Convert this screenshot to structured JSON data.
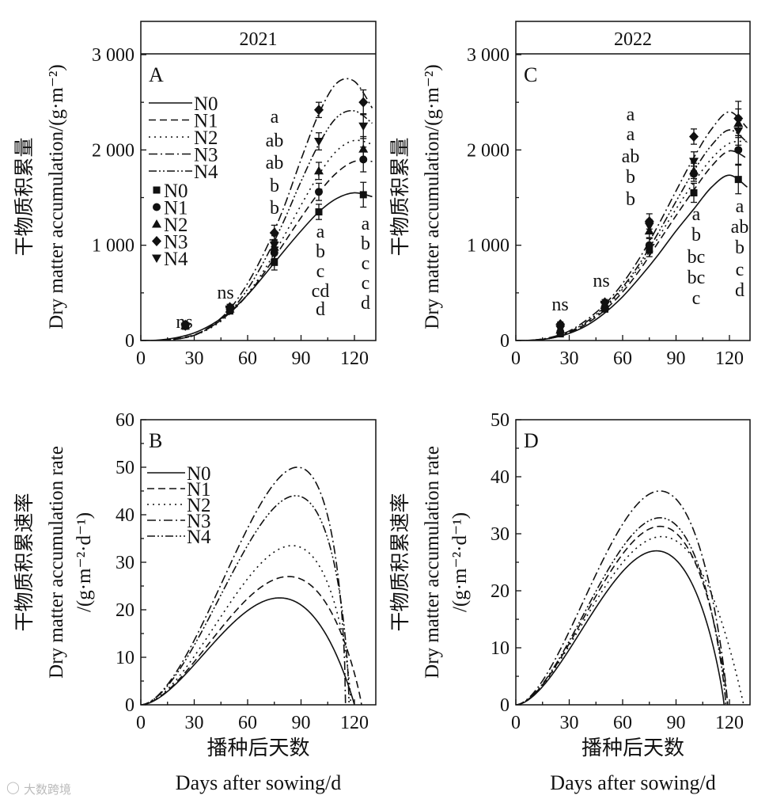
{
  "watermark": "大数跨境",
  "colors": {
    "ink": "#111111",
    "background": "#ffffff"
  },
  "chart_data": [
    {
      "panel": "A",
      "type": "line",
      "year_header": "2021",
      "ylabel_cn": "干物质积累量",
      "ylabel_en": "Dry matter accumulation/(g·m⁻²)",
      "xlabel_cn": "",
      "xlabel_en": "",
      "xlim": [
        0,
        132
      ],
      "ylim": [
        0,
        3000
      ],
      "xticks": [
        "0",
        "30",
        "60",
        "90",
        "120"
      ],
      "xtick_values": [
        0,
        30,
        60,
        90,
        120
      ],
      "yticks": [
        "0",
        "1 000",
        "2 000",
        "3 000"
      ],
      "ytick_values": [
        0,
        1000,
        2000,
        3000
      ],
      "legend_lines": [
        "N0",
        "N1",
        "N2",
        "N3",
        "N4"
      ],
      "legend_markers": [
        "N0",
        "N1",
        "N2",
        "N3",
        "N4"
      ],
      "curve_x": [
        0,
        10,
        20,
        30,
        40,
        50,
        60,
        70,
        80,
        90,
        100,
        110,
        120,
        130
      ],
      "curves": [
        {
          "name": "N0",
          "values": [
            0,
            5,
            30,
            80,
            170,
            300,
            480,
            700,
            930,
            1150,
            1350,
            1490,
            1550,
            1510
          ]
        },
        {
          "name": "N1",
          "values": [
            0,
            3,
            20,
            60,
            150,
            290,
            480,
            730,
            1010,
            1290,
            1550,
            1760,
            1880,
            1880
          ]
        },
        {
          "name": "N2",
          "values": [
            0,
            2,
            15,
            55,
            140,
            280,
            490,
            760,
            1080,
            1420,
            1740,
            1990,
            2100,
            2060
          ]
        },
        {
          "name": "N3",
          "values": [
            0,
            2,
            15,
            55,
            160,
            330,
            600,
            950,
            1380,
            1900,
            2380,
            2700,
            2720,
            2440
          ]
        },
        {
          "name": "N4",
          "values": [
            0,
            2,
            15,
            55,
            150,
            300,
            540,
            860,
            1240,
            1670,
            2060,
            2340,
            2410,
            2280
          ]
        }
      ],
      "points_x": [
        25,
        50,
        75,
        100,
        125
      ],
      "points": [
        {
          "name": "N0",
          "values": [
            150,
            310,
            820,
            1350,
            1530
          ],
          "err": [
            30,
            30,
            80,
            80,
            130
          ]
        },
        {
          "name": "N1",
          "values": [
            150,
            330,
            920,
            1560,
            1900
          ],
          "err": [
            30,
            30,
            60,
            90,
            130
          ]
        },
        {
          "name": "N2",
          "values": [
            155,
            330,
            980,
            1780,
            2010
          ],
          "err": [
            30,
            30,
            60,
            90,
            130
          ]
        },
        {
          "name": "N3",
          "values": [
            165,
            350,
            1130,
            2420,
            2500
          ],
          "err": [
            30,
            30,
            80,
            80,
            130
          ]
        },
        {
          "name": "N4",
          "values": [
            150,
            330,
            1000,
            2090,
            2250
          ],
          "err": [
            30,
            30,
            60,
            90,
            130
          ]
        }
      ],
      "annotations": [
        {
          "day": 25,
          "letters": [
            "ns"
          ]
        },
        {
          "day": 50,
          "letters": [
            "ns"
          ]
        },
        {
          "day": 75,
          "letters": [
            "a",
            "ab",
            "ab",
            "b",
            "b"
          ]
        },
        {
          "day": 100,
          "letters": [
            "a",
            "b",
            "c",
            "cd",
            "d"
          ]
        },
        {
          "day": 125,
          "letters": [
            "a",
            "b",
            "c",
            "c",
            "d"
          ]
        }
      ]
    },
    {
      "panel": "B",
      "type": "line",
      "ylabel_cn": "干物质积累速率",
      "ylabel_en": "Dry matter accumulation rate",
      "ylabel_unit": "/(g·m⁻²·d⁻¹)",
      "xlabel_cn": "播种后天数",
      "xlabel_en": "Days after sowing/d",
      "xlim": [
        0,
        132
      ],
      "ylim": [
        0,
        60
      ],
      "xticks": [
        "0",
        "30",
        "60",
        "90",
        "120"
      ],
      "xtick_values": [
        0,
        30,
        60,
        90,
        120
      ],
      "yticks": [
        "0",
        "10",
        "20",
        "30",
        "40",
        "50",
        "60"
      ],
      "ytick_values": [
        0,
        10,
        20,
        30,
        40,
        50,
        60
      ],
      "legend_lines": [
        "N0",
        "N1",
        "N2",
        "N3",
        "N4"
      ],
      "rate_curves": [
        {
          "name": "N0",
          "peak": 22.5,
          "peak_day": 78,
          "zero_day": 120
        },
        {
          "name": "N1",
          "peak": 27,
          "peak_day": 83,
          "zero_day": 124
        },
        {
          "name": "N2",
          "peak": 33.5,
          "peak_day": 85,
          "zero_day": 118
        },
        {
          "name": "N3",
          "peak": 50,
          "peak_day": 88,
          "zero_day": 115
        },
        {
          "name": "N4",
          "peak": 44,
          "peak_day": 87,
          "zero_day": 117
        }
      ]
    },
    {
      "panel": "C",
      "type": "line",
      "year_header": "2022",
      "ylabel_cn": "干物质积累量",
      "ylabel_en": "Dry matter accumulation/(g·m⁻²)",
      "xlabel_cn": "",
      "xlabel_en": "",
      "xlim": [
        0,
        132
      ],
      "ylim": [
        0,
        3000
      ],
      "xticks": [
        "0",
        "30",
        "60",
        "90",
        "120"
      ],
      "xtick_values": [
        0,
        30,
        60,
        90,
        120
      ],
      "yticks": [
        "0",
        "1 000",
        "2 000",
        "3 000"
      ],
      "ytick_values": [
        0,
        1000,
        2000,
        3000
      ],
      "curve_x": [
        0,
        10,
        20,
        30,
        40,
        50,
        60,
        70,
        80,
        90,
        100,
        110,
        120,
        130
      ],
      "curves": [
        {
          "name": "N0",
          "values": [
            0,
            5,
            25,
            75,
            160,
            290,
            460,
            670,
            900,
            1150,
            1380,
            1610,
            1735,
            1610
          ]
        },
        {
          "name": "N1",
          "values": [
            0,
            4,
            25,
            80,
            180,
            320,
            510,
            750,
            1030,
            1310,
            1580,
            1830,
            1990,
            1910
          ]
        },
        {
          "name": "N2",
          "values": [
            0,
            4,
            28,
            85,
            190,
            340,
            540,
            790,
            1080,
            1380,
            1660,
            1910,
            2070,
            2090
          ]
        },
        {
          "name": "N3",
          "values": [
            0,
            5,
            35,
            100,
            220,
            380,
            600,
            880,
            1210,
            1570,
            1920,
            2220,
            2400,
            2230
          ]
        },
        {
          "name": "N4",
          "values": [
            0,
            4,
            30,
            90,
            200,
            355,
            560,
            820,
            1130,
            1460,
            1780,
            2050,
            2210,
            2080
          ]
        }
      ],
      "points_x": [
        25,
        50,
        75,
        100,
        125
      ],
      "points": [
        {
          "name": "N0",
          "values": [
            70,
            330,
            950,
            1550,
            1690
          ],
          "err": [
            25,
            30,
            70,
            100,
            150
          ]
        },
        {
          "name": "N1",
          "values": [
            90,
            350,
            1000,
            1750,
            2000
          ],
          "err": [
            25,
            30,
            70,
            80,
            150
          ]
        },
        {
          "name": "N2",
          "values": [
            110,
            370,
            1150,
            1780,
            2280
          ],
          "err": [
            25,
            30,
            70,
            80,
            150
          ]
        },
        {
          "name": "N3",
          "values": [
            170,
            400,
            1250,
            2140,
            2330
          ],
          "err": [
            25,
            30,
            80,
            80,
            180
          ]
        },
        {
          "name": "N4",
          "values": [
            120,
            380,
            1200,
            1880,
            2200
          ],
          "err": [
            25,
            30,
            70,
            100,
            150
          ]
        }
      ],
      "annotations": [
        {
          "day": 25,
          "letters": [
            "ns"
          ]
        },
        {
          "day": 50,
          "letters": [
            "ns"
          ]
        },
        {
          "day": 75,
          "letters": [
            "a",
            "a",
            "ab",
            "b",
            "b"
          ]
        },
        {
          "day": 100,
          "letters": [
            "a",
            "b",
            "bc",
            "bc",
            "c"
          ]
        },
        {
          "day": 125,
          "letters": [
            "a",
            "ab",
            "b",
            "c",
            "d"
          ]
        }
      ]
    },
    {
      "panel": "D",
      "type": "line",
      "ylabel_cn": "干物质积累速率",
      "ylabel_en": "Dry matter accumulation rate",
      "ylabel_unit": "/(g·m⁻²·d⁻¹)",
      "xlabel_cn": "播种后天数",
      "xlabel_en": "Days after sowing/d",
      "xlim": [
        0,
        132
      ],
      "ylim": [
        0,
        50
      ],
      "xticks": [
        "0",
        "30",
        "60",
        "90",
        "120"
      ],
      "xtick_values": [
        0,
        30,
        60,
        90,
        120
      ],
      "yticks": [
        "0",
        "10",
        "20",
        "30",
        "40",
        "50"
      ],
      "ytick_values": [
        0,
        10,
        20,
        30,
        40,
        50
      ],
      "rate_curves": [
        {
          "name": "N0",
          "peak": 27,
          "peak_day": 79,
          "zero_day": 117
        },
        {
          "name": "N1",
          "peak": 31.3,
          "peak_day": 81,
          "zero_day": 119
        },
        {
          "name": "N2",
          "peak": 29.5,
          "peak_day": 82,
          "zero_day": 128
        },
        {
          "name": "N3",
          "peak": 37.5,
          "peak_day": 81,
          "zero_day": 119
        },
        {
          "name": "N4",
          "peak": 32.8,
          "peak_day": 81,
          "zero_day": 118
        }
      ]
    }
  ]
}
